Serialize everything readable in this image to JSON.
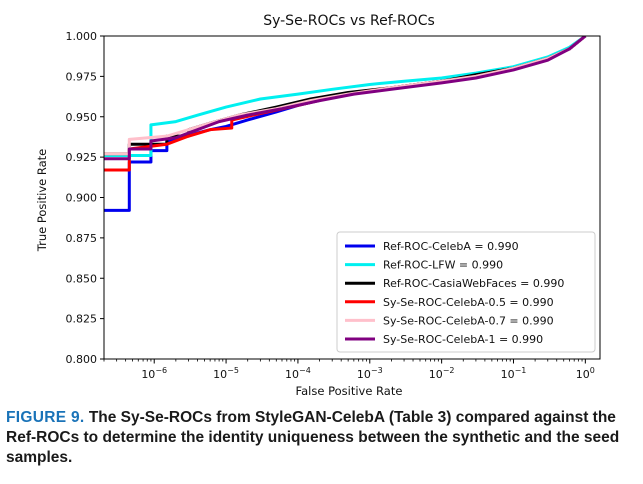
{
  "chart_data": {
    "type": "line",
    "title": "Sy-Se-ROCs vs Ref-ROCs",
    "xlabel": "False Positive Rate",
    "ylabel": "True Positive Rate",
    "xscale": "log",
    "xlim": [
      2e-07,
      1.6
    ],
    "ylim": [
      0.8,
      1.0
    ],
    "yticks": [
      "0.800",
      "0.825",
      "0.850",
      "0.875",
      "0.900",
      "0.925",
      "0.950",
      "0.975",
      "1.000"
    ],
    "xticks": [
      {
        "base": "10",
        "exp": "−6",
        "value": 1e-06
      },
      {
        "base": "10",
        "exp": "−5",
        "value": 1e-05
      },
      {
        "base": "10",
        "exp": "−4",
        "value": 0.0001
      },
      {
        "base": "10",
        "exp": "−3",
        "value": 0.001
      },
      {
        "base": "10",
        "exp": "−2",
        "value": 0.01
      },
      {
        "base": "10",
        "exp": "−1",
        "value": 0.1
      },
      {
        "base": "10",
        "exp": "0",
        "value": 1
      }
    ],
    "legend_position": "lower-right",
    "series": [
      {
        "name": "Ref-ROC-CelebA",
        "label": "Ref-ROC-CelebA = 0.990",
        "color": "#0000ee",
        "points": [
          [
            2e-07,
            0.892
          ],
          [
            4.5e-07,
            0.892
          ],
          [
            4.5e-07,
            0.922
          ],
          [
            9e-07,
            0.922
          ],
          [
            9e-07,
            0.929
          ],
          [
            1.5e-06,
            0.929
          ],
          [
            1.5e-06,
            0.935
          ],
          [
            2.5e-06,
            0.937
          ],
          [
            4e-06,
            0.94
          ],
          [
            6e-06,
            0.942
          ],
          [
            1e-05,
            0.944
          ],
          [
            2e-05,
            0.948
          ],
          [
            5e-05,
            0.953
          ],
          [
            0.0001,
            0.957
          ],
          [
            0.0003,
            0.962
          ],
          [
            0.001,
            0.966
          ],
          [
            0.003,
            0.969
          ],
          [
            0.01,
            0.972
          ],
          [
            0.03,
            0.975
          ],
          [
            0.1,
            0.98
          ],
          [
            0.3,
            0.986
          ],
          [
            0.6,
            0.992
          ],
          [
            1,
            1.0
          ]
        ]
      },
      {
        "name": "Ref-ROC-LFW",
        "label": "Ref-ROC-LFW = 0.990",
        "color": "#00f0f0",
        "points": [
          [
            2e-07,
            0.926
          ],
          [
            9e-07,
            0.926
          ],
          [
            9e-07,
            0.945
          ],
          [
            2e-06,
            0.947
          ],
          [
            4e-06,
            0.951
          ],
          [
            1e-05,
            0.956
          ],
          [
            3e-05,
            0.961
          ],
          [
            0.0001,
            0.964
          ],
          [
            0.0003,
            0.967
          ],
          [
            0.001,
            0.97
          ],
          [
            0.003,
            0.972
          ],
          [
            0.01,
            0.974
          ],
          [
            0.03,
            0.977
          ],
          [
            0.1,
            0.981
          ],
          [
            0.3,
            0.987
          ],
          [
            0.6,
            0.993
          ],
          [
            1,
            1.0
          ]
        ]
      },
      {
        "name": "Ref-ROC-CasiaWebFaces",
        "label": "Ref-ROC-CasiaWebFaces = 0.990",
        "color": "#000000",
        "points": [
          [
            2e-07,
            0.927
          ],
          [
            4.5e-07,
            0.927
          ],
          [
            4.5e-07,
            0.933
          ],
          [
            1.5e-06,
            0.933
          ],
          [
            1.5e-06,
            0.938
          ],
          [
            3e-06,
            0.938
          ],
          [
            3e-06,
            0.942
          ],
          [
            6e-06,
            0.946
          ],
          [
            1.5e-05,
            0.951
          ],
          [
            5e-05,
            0.956
          ],
          [
            0.00015,
            0.961
          ],
          [
            0.0005,
            0.965
          ],
          [
            0.002,
            0.968
          ],
          [
            0.01,
            0.972
          ],
          [
            0.03,
            0.976
          ],
          [
            0.1,
            0.98
          ],
          [
            0.3,
            0.986
          ],
          [
            0.6,
            0.992
          ],
          [
            1,
            1.0
          ]
        ]
      },
      {
        "name": "Sy-Se-ROC-CelebA-0.5",
        "label": "Sy-Se-ROC-CelebA-0.5 = 0.990",
        "color": "#ff0000",
        "points": [
          [
            2e-07,
            0.917
          ],
          [
            4.5e-07,
            0.917
          ],
          [
            4.5e-07,
            0.93
          ],
          [
            1.5e-06,
            0.933
          ],
          [
            3e-06,
            0.938
          ],
          [
            6e-06,
            0.942
          ],
          [
            1.2e-05,
            0.943
          ],
          [
            1.2e-05,
            0.948
          ],
          [
            3e-05,
            0.952
          ],
          [
            0.0001,
            0.957
          ],
          [
            0.0003,
            0.962
          ],
          [
            0.001,
            0.966
          ],
          [
            0.003,
            0.969
          ],
          [
            0.01,
            0.972
          ],
          [
            0.03,
            0.975
          ],
          [
            0.1,
            0.98
          ],
          [
            0.3,
            0.986
          ],
          [
            0.6,
            0.992
          ],
          [
            1,
            1.0
          ]
        ]
      },
      {
        "name": "Sy-Se-ROC-CelebA-0.7",
        "label": "Sy-Se-ROC-CelebA-0.7 = 0.990",
        "color": "#ffc0cb",
        "points": [
          [
            2e-07,
            0.927
          ],
          [
            4.5e-07,
            0.927
          ],
          [
            4.5e-07,
            0.936
          ],
          [
            1.5e-06,
            0.938
          ],
          [
            3e-06,
            0.942
          ],
          [
            6e-06,
            0.946
          ],
          [
            1.5e-05,
            0.951
          ],
          [
            5e-05,
            0.955
          ],
          [
            0.00015,
            0.96
          ],
          [
            0.0005,
            0.964
          ],
          [
            0.002,
            0.968
          ],
          [
            0.01,
            0.972
          ],
          [
            0.03,
            0.975
          ],
          [
            0.1,
            0.98
          ],
          [
            0.3,
            0.986
          ],
          [
            0.6,
            0.992
          ],
          [
            1,
            1.0
          ]
        ]
      },
      {
        "name": "Sy-Se-ROC-CelebA-1",
        "label": "Sy-Se-ROC-CelebA-1 = 0.990",
        "color": "#800080",
        "points": [
          [
            2e-07,
            0.924
          ],
          [
            4.5e-07,
            0.924
          ],
          [
            4.5e-07,
            0.93
          ],
          [
            9e-07,
            0.93
          ],
          [
            9e-07,
            0.935
          ],
          [
            2e-06,
            0.937
          ],
          [
            4e-06,
            0.942
          ],
          [
            8e-06,
            0.947
          ],
          [
            2e-05,
            0.951
          ],
          [
            6e-05,
            0.955
          ],
          [
            0.0002,
            0.96
          ],
          [
            0.0006,
            0.964
          ],
          [
            0.002,
            0.967
          ],
          [
            0.01,
            0.971
          ],
          [
            0.03,
            0.974
          ],
          [
            0.1,
            0.979
          ],
          [
            0.3,
            0.985
          ],
          [
            0.6,
            0.992
          ],
          [
            1,
            1.0
          ]
        ]
      }
    ]
  },
  "caption": {
    "figure_label": "FIGURE 9.",
    "text": "The Sy-Se-ROCs from StyleGAN-CelebA (Table 3) compared against the Ref-ROCs to determine the identity uniqueness between the synthetic and the seed samples."
  }
}
